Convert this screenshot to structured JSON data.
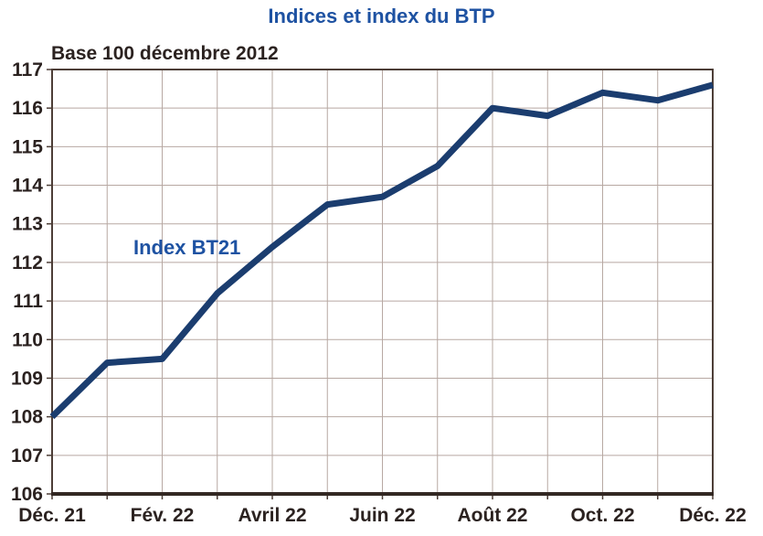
{
  "chart_data": {
    "type": "line",
    "title": "Indices et index du BTP",
    "subtitle": "Base 100 décembre 2012",
    "series": [
      {
        "name": "Index BT21",
        "color": "#1b3d6f",
        "values": [
          108.0,
          109.4,
          109.5,
          111.2,
          112.4,
          113.5,
          113.7,
          114.5,
          116.0,
          115.8,
          116.4,
          116.2,
          116.6
        ]
      }
    ],
    "x_unit": "month",
    "x_tick_labels": [
      "Déc. 21",
      "Fév. 22",
      "Avril 22",
      "Juin 22",
      "Août 22",
      "Oct. 22",
      "Déc. 22"
    ],
    "x_tick_indices": [
      0,
      2,
      4,
      6,
      8,
      10,
      12
    ],
    "ylim": [
      106,
      117
    ],
    "y_ticks": [
      106,
      107,
      108,
      109,
      110,
      111,
      112,
      113,
      114,
      115,
      116,
      117
    ],
    "grid": true,
    "legend_position": "inline-label",
    "colors": {
      "line": "#1b3d6f",
      "title_text": "#1e52a2",
      "series_label_text": "#1e52a2",
      "grid": "#b7a8a2",
      "border": "#4d3e37",
      "axis": "#332823",
      "tick_text": "#2b2220",
      "background": "#ffffff"
    }
  }
}
